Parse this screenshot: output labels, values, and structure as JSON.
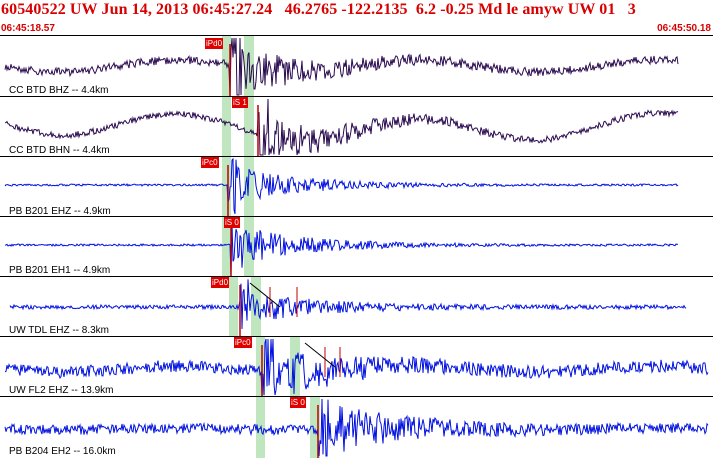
{
  "header": {
    "title": "60540522 UW Jun 14, 2013 06:45:27.24   46.2765 -122.2135  6.2 -0.25 Md le amyw UW 01   3",
    "time_start": "06:45:18.57",
    "time_end": "06:45:50.18"
  },
  "colors": {
    "header_text": "#d80000",
    "pick_bg": "#e00000",
    "window_green": "#bfe6bf",
    "trace_dark": "#2a0a50",
    "trace_blue": "#0010e0",
    "pick_line": "#c00000"
  },
  "channels": [
    {
      "label": "CC BTD BHZ -- 4.4km",
      "pick": "iPd0",
      "color": "dark",
      "amplitude": "large"
    },
    {
      "label": "CC BTD BHN -- 4.4km",
      "pick": "iS 1",
      "color": "dark",
      "amplitude": "large"
    },
    {
      "label": "PB B201 EHZ -- 4.9km",
      "pick": "iPc0",
      "color": "blue",
      "amplitude": "medium"
    },
    {
      "label": "PB B201 EH1 -- 4.9km",
      "pick": "iS 0",
      "color": "blue",
      "amplitude": "medium"
    },
    {
      "label": "UW TDL EHZ -- 8.3km",
      "pick": "iPd0",
      "color": "blue",
      "amplitude": "medium"
    },
    {
      "label": "UW FL2 EHZ -- 13.9km",
      "pick": "iPc0",
      "color": "blue",
      "amplitude": "noisy"
    },
    {
      "label": "PB B204 EH2 -- 16.0km",
      "pick": "iS 0",
      "color": "blue",
      "amplitude": "noisy"
    }
  ]
}
